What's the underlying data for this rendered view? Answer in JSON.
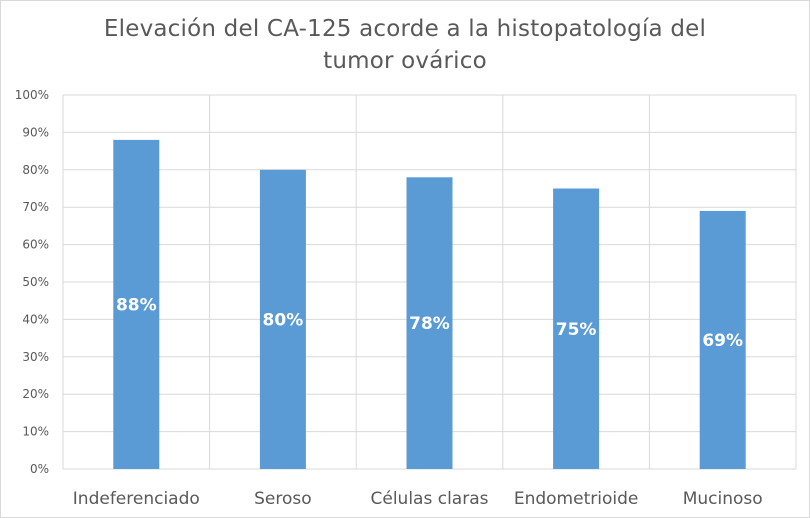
{
  "chart_data": {
    "type": "bar",
    "title_lines": [
      "Elevación del CA-125 acorde a la histopatología del",
      "tumor ovárico"
    ],
    "categories": [
      "Indeferenciado",
      "Seroso",
      "Células claras",
      "Endometrioide",
      "Mucinoso"
    ],
    "values": [
      88,
      80,
      78,
      75,
      69
    ],
    "data_labels": [
      "88%",
      "80%",
      "78%",
      "75%",
      "69%"
    ],
    "ylim": [
      0,
      100
    ],
    "yticks": [
      0,
      10,
      20,
      30,
      40,
      50,
      60,
      70,
      80,
      90,
      100
    ],
    "ytick_labels": [
      "0%",
      "10%",
      "20%",
      "30%",
      "40%",
      "50%",
      "60%",
      "70%",
      "80%",
      "90%",
      "100%"
    ],
    "grid": true,
    "bar_color": "#5b9bd5",
    "grid_color": "#d9d9d9"
  }
}
